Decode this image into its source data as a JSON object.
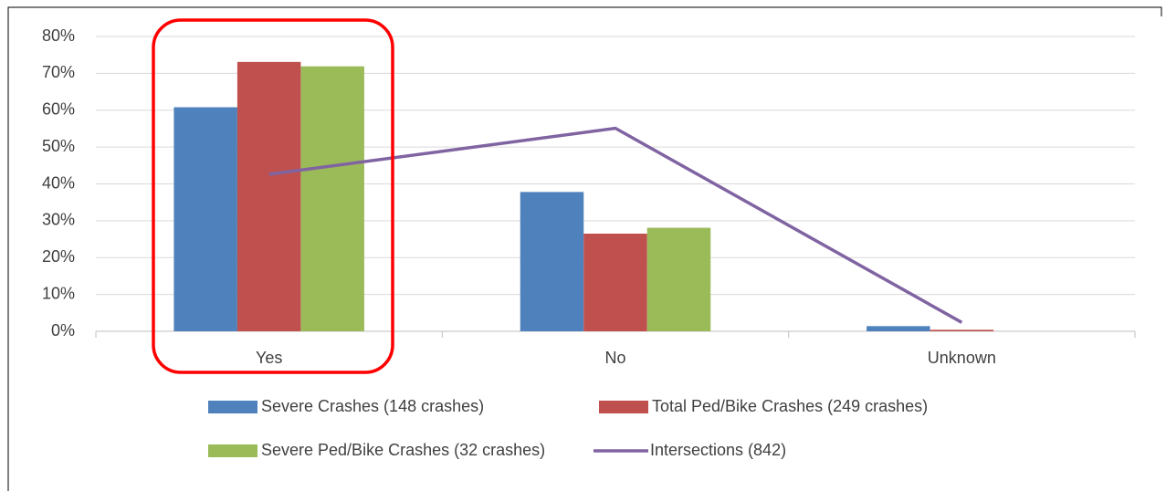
{
  "chart_data": {
    "type": "bar",
    "categories": [
      "Yes",
      "No",
      "Unknown"
    ],
    "series": [
      {
        "name": "Severe Crashes (148 crashes)",
        "color": "#4f81bd",
        "type": "bar",
        "values": [
          60.8,
          37.8,
          1.4
        ]
      },
      {
        "name": "Total Ped/Bike Crashes (249 crashes)",
        "color": "#c0504d",
        "type": "bar",
        "values": [
          73.1,
          26.5,
          0.4
        ]
      },
      {
        "name": "Severe Ped/Bike Crashes (32 crashes)",
        "color": "#9bbb59",
        "type": "bar",
        "values": [
          71.9,
          28.1,
          0
        ]
      },
      {
        "name": "Intersections (842)",
        "color": "#8064a2",
        "type": "line",
        "values": [
          42.6,
          55.1,
          2.4
        ]
      }
    ],
    "ylim": [
      0,
      80
    ],
    "yticks": [
      {
        "value": 0,
        "label": "0%"
      },
      {
        "value": 10,
        "label": "10%"
      },
      {
        "value": 20,
        "label": "20%"
      },
      {
        "value": 30,
        "label": "30%"
      },
      {
        "value": 40,
        "label": "40%"
      },
      {
        "value": 50,
        "label": "50%"
      },
      {
        "value": 60,
        "label": "60%"
      },
      {
        "value": 70,
        "label": "70%"
      },
      {
        "value": 80,
        "label": "80%"
      }
    ],
    "grid": true,
    "legend": "bottom"
  }
}
